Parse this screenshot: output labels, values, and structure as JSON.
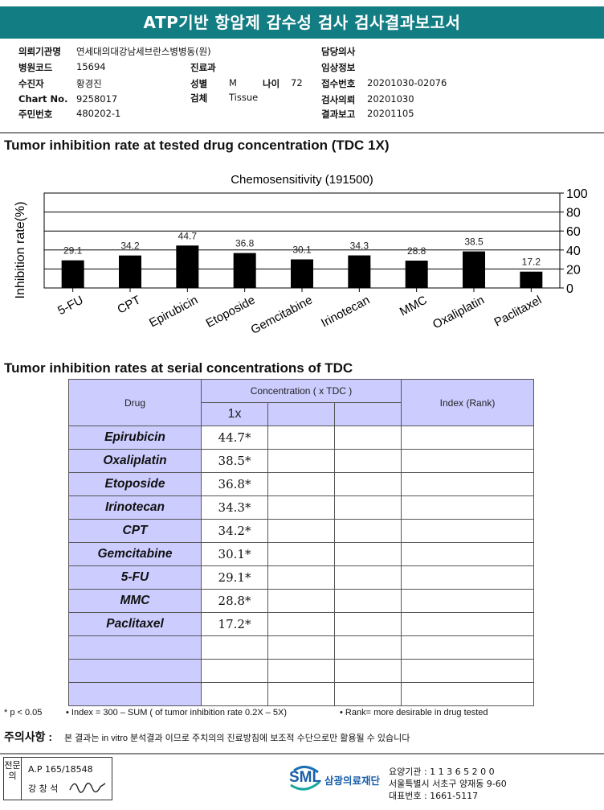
{
  "header": {
    "title": "ATP기반 항암제 감수성 검사 검사결과보고서"
  },
  "patient": {
    "institution_label": "의뢰기관명",
    "institution": "연세대의대강남세브란스병병동(원)",
    "hospital_code_label": "병원코드",
    "hospital_code": "15694",
    "patient_label": "수진자",
    "patient_name": "황경진",
    "chart_label": "Chart No.",
    "chart_no": "9258017",
    "id_label": "주민번호",
    "id_no": "480202-1",
    "dept_label": "진료과",
    "sex_label": "성별",
    "sex": "M",
    "age_label": "나이",
    "age": "72",
    "specimen_label": "검체",
    "specimen": "Tissue",
    "doctor_label": "담당의사",
    "clinical_label": "임상정보",
    "accession_label": "접수번호",
    "accession": "20201030-02076",
    "request_label": "검사의뢰",
    "request_date": "20201030",
    "report_label": "결과보고",
    "report_date": "20201105"
  },
  "section1": {
    "title": "Tumor inhibition rate at tested drug concentration (TDC 1X)"
  },
  "chart_data": {
    "type": "bar",
    "title": "Chemosensitivity (191500)",
    "ylabel": "Inhibition rate(%)",
    "categories": [
      "5-FU",
      "CPT",
      "Epirubicin",
      "Etoposide",
      "Gemcitabine",
      "Irinotecan",
      "MMC",
      "Oxaliplatin",
      "Paclitaxel"
    ],
    "values": [
      29.1,
      34.2,
      44.7,
      36.8,
      30.1,
      34.3,
      28.8,
      38.5,
      17.2
    ],
    "value_labels": [
      "29.1",
      "34.2",
      "44.7",
      "36.8",
      "30.1",
      "34.3",
      "28.8",
      "38.5",
      "17.2"
    ],
    "ylim": [
      0,
      100
    ],
    "yticks": [
      "0",
      "20",
      "40",
      "60",
      "80",
      "100"
    ],
    "y_axis_side": "right",
    "grid": true,
    "bar_color": "#000000"
  },
  "section2": {
    "title": "Tumor inhibition rates at serial concentrations of TDC"
  },
  "table": {
    "drug_header": "Drug",
    "conc_header": "Concentration ( x TDC )",
    "index_header": "Index (Rank)",
    "sub_header": "1x",
    "rows": [
      {
        "drug": "Epirubicin",
        "value": "44.7*"
      },
      {
        "drug": "Oxaliplatin",
        "value": "38.5*"
      },
      {
        "drug": "Etoposide",
        "value": "36.8*"
      },
      {
        "drug": "Irinotecan",
        "value": "34.3*"
      },
      {
        "drug": "CPT",
        "value": "34.2*"
      },
      {
        "drug": "Gemcitabine",
        "value": "30.1*"
      },
      {
        "drug": "5-FU",
        "value": "29.1*"
      },
      {
        "drug": "MMC",
        "value": "28.8*"
      },
      {
        "drug": "Paclitaxel",
        "value": "17.2*"
      }
    ]
  },
  "footnotes": {
    "p": "* p < 0.05",
    "index": "• Index = 300 – SUM ( of tumor inhibition rate 0.2X – 5X)",
    "rank": "• Rank= more desirable in drug tested"
  },
  "caution": {
    "label": "주의사항 :",
    "text": "본 결과는 in vitro 분석결과 이므로 주치의의 진료방침에 보조적 수단으로만 활용될 수 있습니다"
  },
  "footer": {
    "stamp_side": "전문의",
    "ap": "A.P 165/18548",
    "doctor": "강 창 석",
    "logo": "SML",
    "org": "삼광의료재단",
    "care_code": "요양기관 : 1 1 3 6 5 2 0 0",
    "address": "서울특별시 서초구 양재동 9-60",
    "phone": "대표번호 : 1661-5117"
  }
}
